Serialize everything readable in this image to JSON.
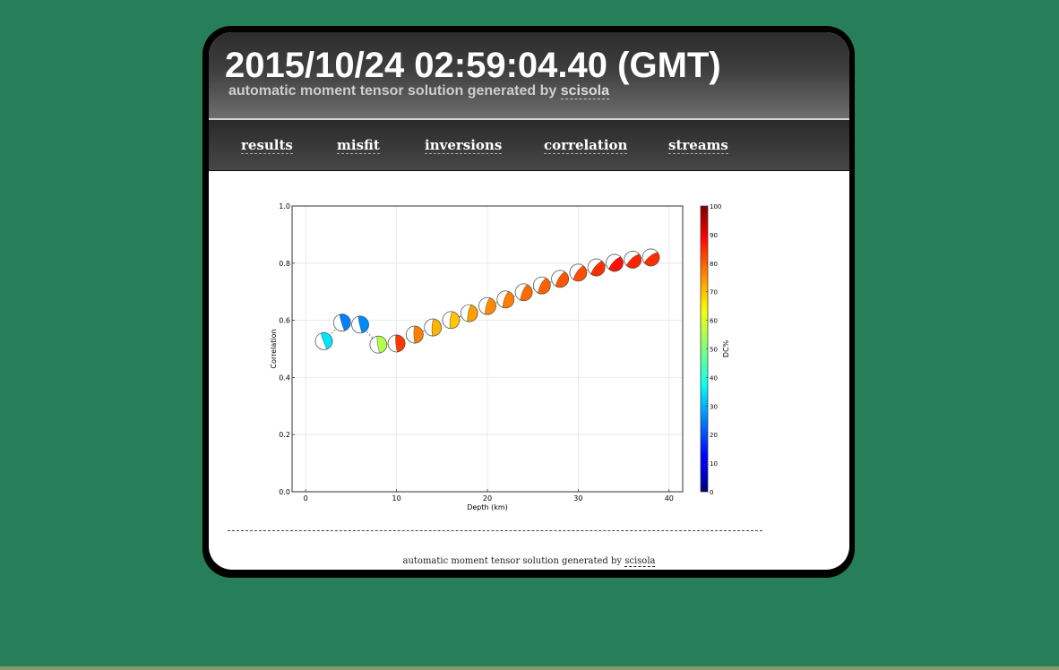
{
  "header": {
    "title": "2015/10/24 02:59:04.40 (GMT)",
    "subtitle_prefix": "automatic moment tensor solution generated by",
    "subtitle_link": "scisola"
  },
  "nav": {
    "items": [
      {
        "label": "results",
        "name": "nav-results"
      },
      {
        "label": "misfit",
        "name": "nav-misfit"
      },
      {
        "label": "inversions",
        "name": "nav-inversions"
      },
      {
        "label": "correlation",
        "name": "nav-correlation"
      },
      {
        "label": "streams",
        "name": "nav-streams"
      }
    ]
  },
  "footer": {
    "prefix": "automatic moment tensor solution generated by",
    "link": "scisola"
  },
  "chart_data": {
    "type": "scatter",
    "title": "",
    "xlabel": "Depth (km)",
    "ylabel": "Correlation",
    "xlim": [
      -1.5,
      41.5
    ],
    "ylim": [
      0.0,
      1.0
    ],
    "xticks": [
      0,
      10,
      20,
      30,
      40
    ],
    "yticks": [
      0.0,
      0.2,
      0.4,
      0.6,
      0.8,
      1.0
    ],
    "ytick_labels": [
      "0.0",
      "0.2",
      "0.4",
      "0.6",
      "0.8",
      "1.0"
    ],
    "grid": true,
    "marker": "beachball",
    "colorbar": {
      "label": "DC%",
      "range": [
        0,
        100
      ],
      "ticks": [
        0,
        10,
        20,
        30,
        40,
        50,
        60,
        70,
        80,
        90,
        100
      ],
      "colormap": "jet"
    },
    "points": [
      {
        "depth": 2,
        "correlation": 0.527,
        "dc": 35
      },
      {
        "depth": 4,
        "correlation": 0.592,
        "dc": 25
      },
      {
        "depth": 6,
        "correlation": 0.585,
        "dc": 26
      },
      {
        "depth": 8,
        "correlation": 0.515,
        "dc": 55
      },
      {
        "depth": 10,
        "correlation": 0.519,
        "dc": 82
      },
      {
        "depth": 12,
        "correlation": 0.55,
        "dc": 75
      },
      {
        "depth": 14,
        "correlation": 0.575,
        "dc": 70
      },
      {
        "depth": 16,
        "correlation": 0.601,
        "dc": 68
      },
      {
        "depth": 18,
        "correlation": 0.625,
        "dc": 72
      },
      {
        "depth": 20,
        "correlation": 0.65,
        "dc": 74
      },
      {
        "depth": 22,
        "correlation": 0.673,
        "dc": 75
      },
      {
        "depth": 24,
        "correlation": 0.698,
        "dc": 77
      },
      {
        "depth": 26,
        "correlation": 0.722,
        "dc": 78
      },
      {
        "depth": 28,
        "correlation": 0.745,
        "dc": 79
      },
      {
        "depth": 30,
        "correlation": 0.767,
        "dc": 80
      },
      {
        "depth": 32,
        "correlation": 0.785,
        "dc": 83
      },
      {
        "depth": 34,
        "correlation": 0.801,
        "dc": 86
      },
      {
        "depth": 36,
        "correlation": 0.812,
        "dc": 84
      },
      {
        "depth": 38,
        "correlation": 0.82,
        "dc": 83
      }
    ]
  }
}
